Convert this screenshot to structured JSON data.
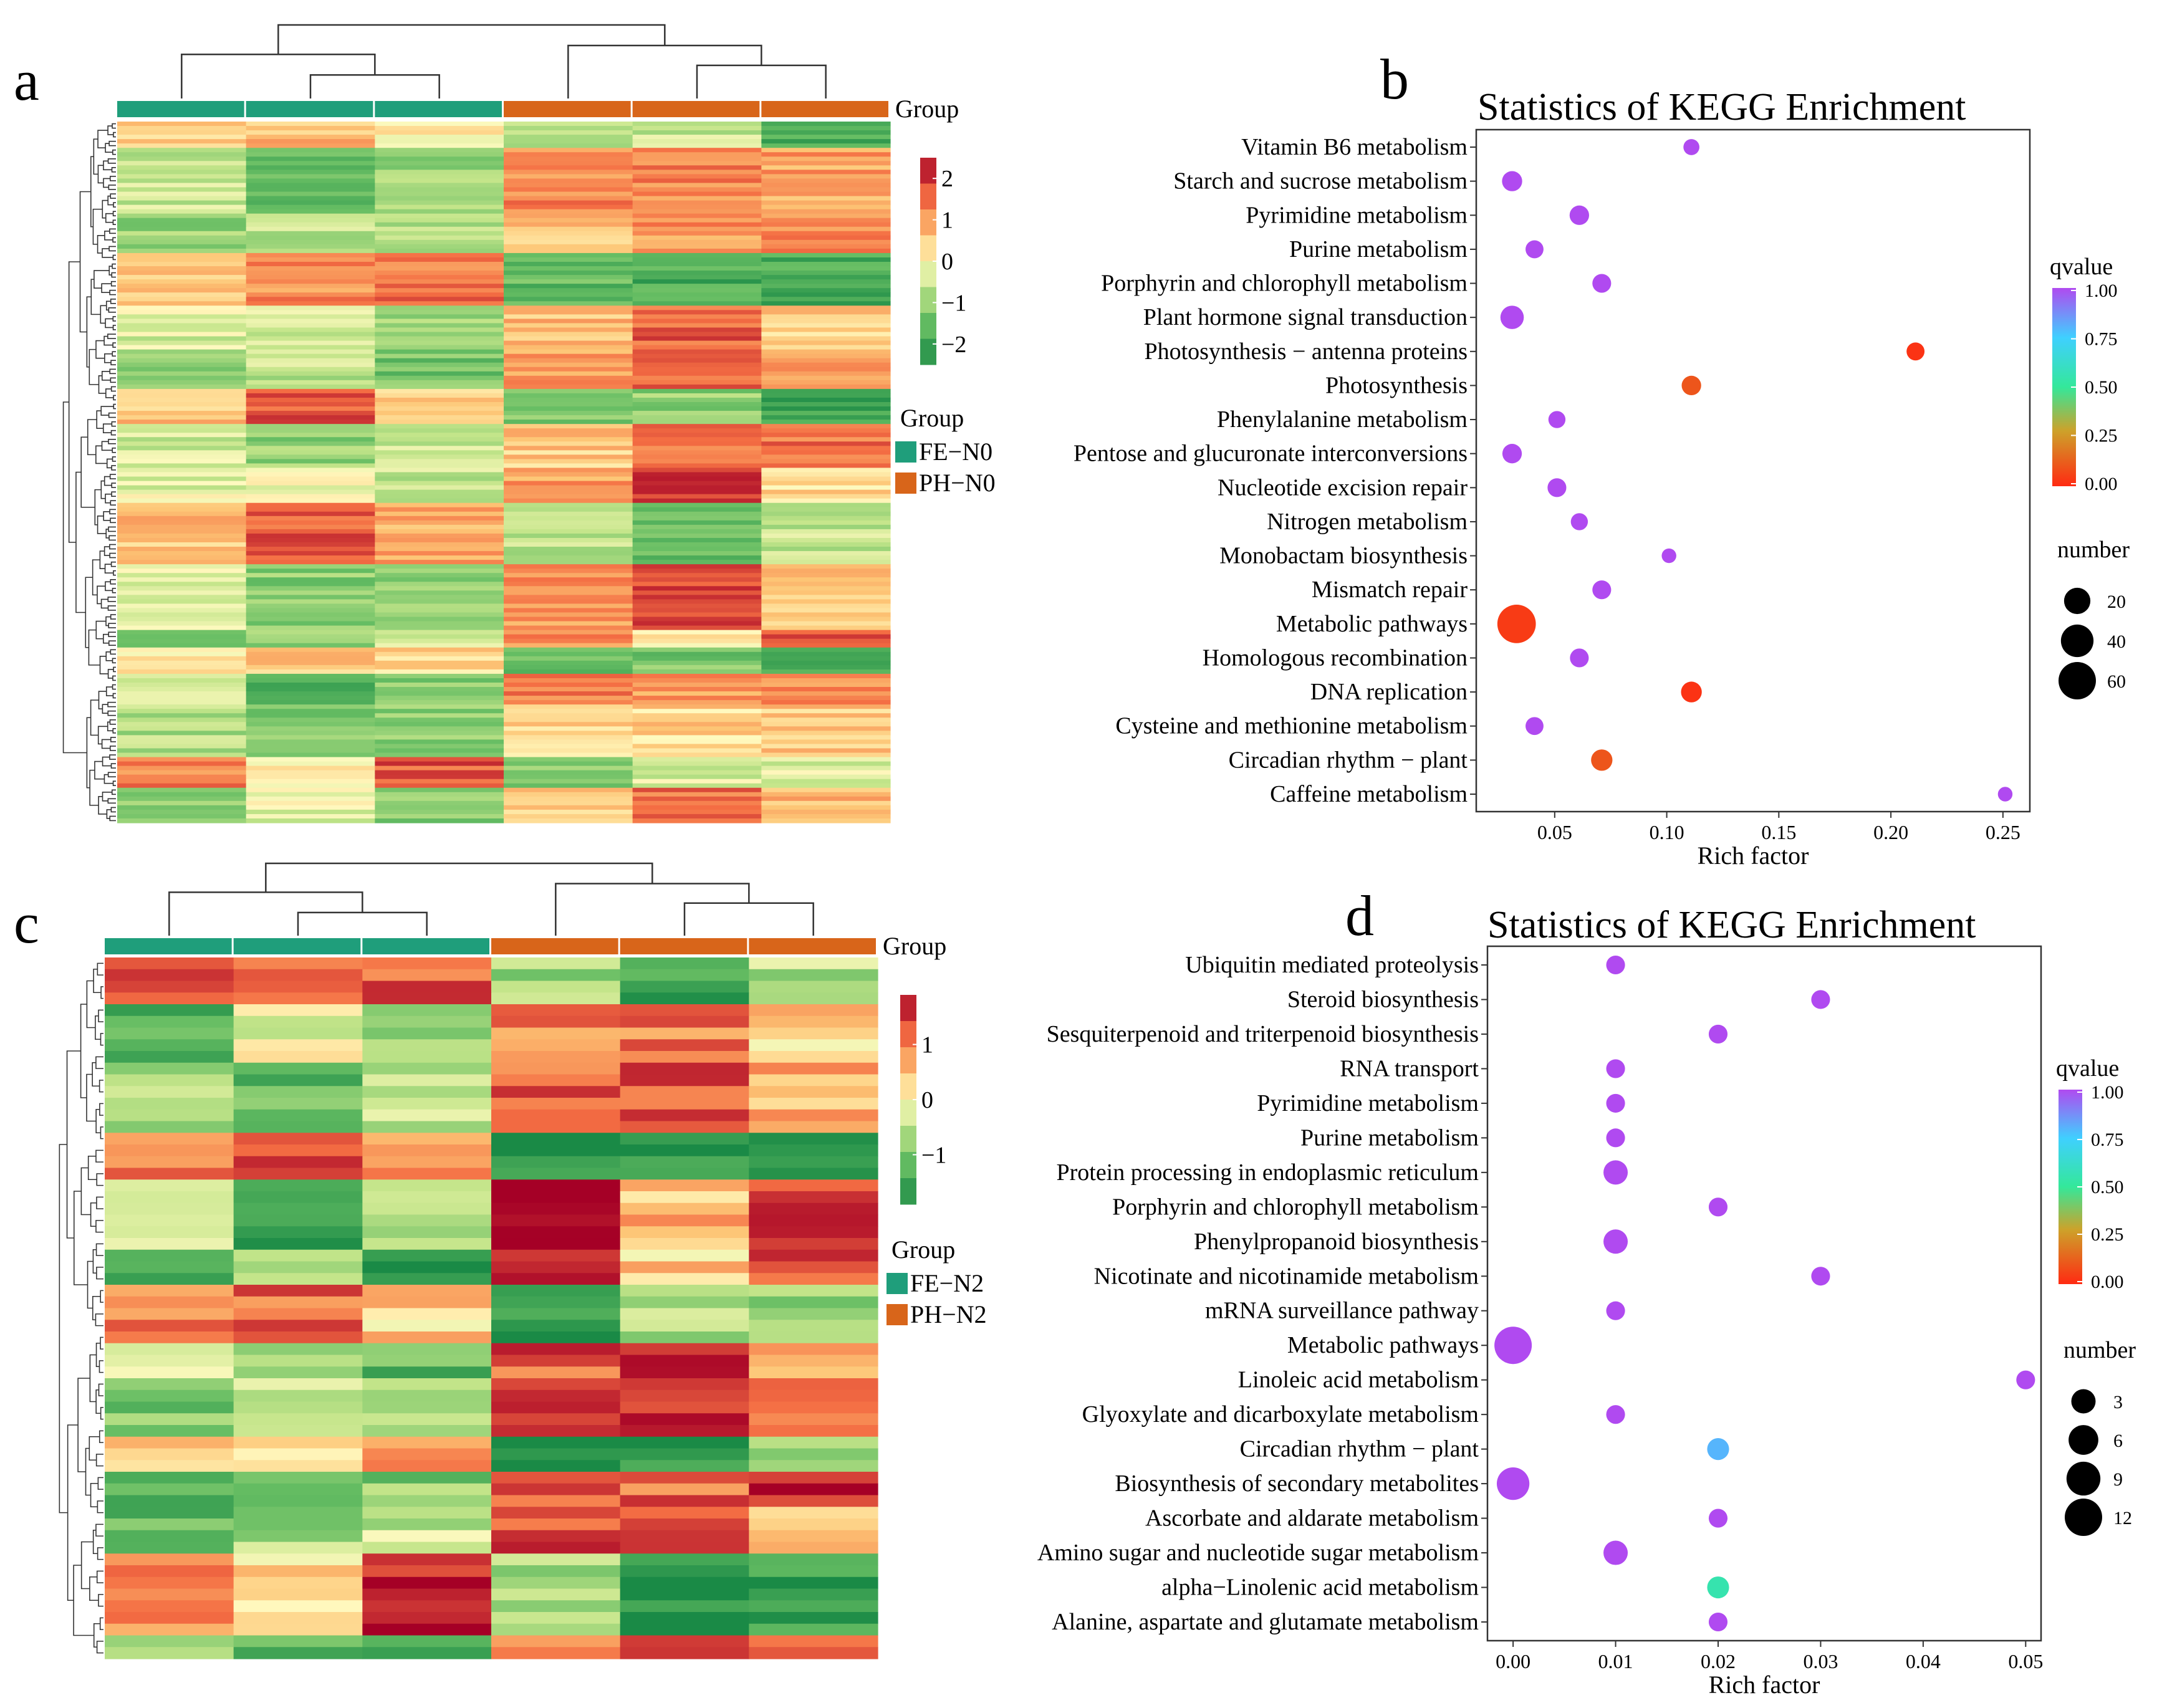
{
  "colors": {
    "fe_group": "#1f9e7b",
    "ph_group": "#d8651a",
    "heat_low": "#1a8a46",
    "heat_mid": "#fffac0",
    "heat_high": "#a50026",
    "q_low": "#ff2a12",
    "q_mid1": "#cda22a",
    "q_mid2": "#34e89a",
    "q_mid3": "#3fd0ff",
    "q_high": "#b04af0",
    "dendro": "#333333"
  },
  "chart_data": [
    {
      "panel": "a",
      "type": "heatmap",
      "columns": 6,
      "rows": 160,
      "group_label": "Group",
      "groups": [
        {
          "name": "FE−N0",
          "columns": 3
        },
        {
          "name": "PH−N0",
          "columns": 3
        }
      ],
      "scale": {
        "min": -2.5,
        "max": 2.5,
        "ticks": [
          "2",
          "1",
          "0",
          "−1",
          "−2"
        ],
        "tick_values": [
          2,
          1,
          0,
          -1,
          -2
        ]
      },
      "legend_title": "Group",
      "seed": 11
    },
    {
      "panel": "b",
      "type": "scatter",
      "title": "Statistics of KEGG Enrichment",
      "xlabel": "Rich factor",
      "xlim": [
        0.015,
        0.262
      ],
      "xticks": [
        "0.05",
        "0.10",
        "0.15",
        "0.20",
        "0.25"
      ],
      "xtick_values": [
        0.05,
        0.1,
        0.15,
        0.2,
        0.25
      ],
      "color_title": "qvalue",
      "color_ticks": [
        "1.00",
        "0.75",
        "0.50",
        "0.25",
        "0.00"
      ],
      "size_title": "number",
      "size_ticks": [
        "20",
        "40",
        "60"
      ],
      "size_tick_values": [
        20,
        40,
        60
      ],
      "size_max": 60,
      "categories": [
        "Vitamin B6 metabolism",
        "Starch and sucrose metabolism",
        "Pyrimidine metabolism",
        "Purine metabolism",
        "Porphyrin and chlorophyll metabolism",
        "Plant hormone signal transduction",
        "Photosynthesis − antenna proteins",
        "Photosynthesis",
        "Phenylalanine metabolism",
        "Pentose and glucuronate interconversions",
        "Nucleotide excision repair",
        "Nitrogen metabolism",
        "Monobactam biosynthesis",
        "Mismatch repair",
        "Metabolic pathways",
        "Homologous recombination",
        "DNA replication",
        "Cysteine and methionine metabolism",
        "Circadian rhythm − plant",
        "Caffeine metabolism"
      ],
      "points": [
        {
          "rich": 0.111,
          "q": 1.0,
          "n": 2
        },
        {
          "rich": 0.031,
          "q": 1.0,
          "n": 7
        },
        {
          "rich": 0.061,
          "q": 1.0,
          "n": 6
        },
        {
          "rich": 0.041,
          "q": 1.0,
          "n": 4
        },
        {
          "rich": 0.071,
          "q": 1.0,
          "n": 5
        },
        {
          "rich": 0.031,
          "q": 1.0,
          "n": 13
        },
        {
          "rich": 0.211,
          "q": 0.02,
          "n": 4
        },
        {
          "rich": 0.111,
          "q": 0.1,
          "n": 6
        },
        {
          "rich": 0.051,
          "q": 1.0,
          "n": 3
        },
        {
          "rich": 0.031,
          "q": 1.0,
          "n": 6
        },
        {
          "rich": 0.051,
          "q": 1.0,
          "n": 5
        },
        {
          "rich": 0.061,
          "q": 1.0,
          "n": 3
        },
        {
          "rich": 0.101,
          "q": 1.0,
          "n": 1
        },
        {
          "rich": 0.071,
          "q": 1.0,
          "n": 5
        },
        {
          "rich": 0.033,
          "q": 0.04,
          "n": 65
        },
        {
          "rich": 0.061,
          "q": 1.0,
          "n": 5
        },
        {
          "rich": 0.111,
          "q": 0.02,
          "n": 8
        },
        {
          "rich": 0.041,
          "q": 1.0,
          "n": 4
        },
        {
          "rich": 0.071,
          "q": 0.1,
          "n": 9
        },
        {
          "rich": 0.251,
          "q": 1.0,
          "n": 1
        }
      ]
    },
    {
      "panel": "c",
      "type": "heatmap",
      "columns": 6,
      "rows": 60,
      "group_label": "Group",
      "groups": [
        {
          "name": "FE−N2",
          "columns": 3
        },
        {
          "name": "PH−N2",
          "columns": 3
        }
      ],
      "scale": {
        "min": -1.9,
        "max": 1.9,
        "ticks": [
          "1",
          "0",
          "−1"
        ],
        "tick_values": [
          1,
          0,
          -1
        ]
      },
      "legend_title": "Group",
      "seed": 29
    },
    {
      "panel": "d",
      "type": "scatter",
      "title": "Statistics of KEGG Enrichment",
      "xlabel": "Rich factor",
      "xlim": [
        -0.0025,
        0.0515
      ],
      "xticks": [
        "0.00",
        "0.01",
        "0.02",
        "0.03",
        "0.04",
        "0.05"
      ],
      "xtick_values": [
        0.0,
        0.01,
        0.02,
        0.03,
        0.04,
        0.05
      ],
      "color_title": "qvalue",
      "color_ticks": [
        "1.00",
        "0.75",
        "0.50",
        "0.25",
        "0.00"
      ],
      "size_title": "number",
      "size_ticks": [
        "3",
        "6",
        "9",
        "12"
      ],
      "size_tick_values": [
        3,
        6,
        9,
        12
      ],
      "size_max": 12,
      "categories": [
        "Ubiquitin mediated proteolysis",
        "Steroid biosynthesis",
        "Sesquiterpenoid and triterpenoid biosynthesis",
        "RNA transport",
        "Pyrimidine metabolism",
        "Purine metabolism",
        "Protein processing in endoplasmic reticulum",
        "Porphyrin and chlorophyll metabolism",
        "Phenylpropanoid biosynthesis",
        "Nicotinate and nicotinamide metabolism",
        "mRNA surveillance pathway",
        "Metabolic pathways",
        "Linoleic acid metabolism",
        "Glyoxylate and dicarboxylate metabolism",
        "Circadian rhythm − plant",
        "Biosynthesis of secondary metabolites",
        "Ascorbate and aldarate metabolism",
        "Amino sugar and nucleotide sugar metabolism",
        "alpha−Linolenic acid metabolism",
        "Alanine, aspartate and glutamate metabolism"
      ],
      "points": [
        {
          "rich": 0.01,
          "q": 1.0,
          "n": 1
        },
        {
          "rich": 0.03,
          "q": 1.0,
          "n": 1
        },
        {
          "rich": 0.02,
          "q": 1.0,
          "n": 1
        },
        {
          "rich": 0.01,
          "q": 1.0,
          "n": 1
        },
        {
          "rich": 0.01,
          "q": 1.0,
          "n": 1
        },
        {
          "rich": 0.01,
          "q": 1.0,
          "n": 1
        },
        {
          "rich": 0.01,
          "q": 1.0,
          "n": 3
        },
        {
          "rich": 0.02,
          "q": 1.0,
          "n": 1
        },
        {
          "rich": 0.01,
          "q": 1.0,
          "n": 3
        },
        {
          "rich": 0.03,
          "q": 1.0,
          "n": 1
        },
        {
          "rich": 0.01,
          "q": 1.0,
          "n": 1
        },
        {
          "rich": 0.0,
          "q": 1.0,
          "n": 12
        },
        {
          "rich": 0.05,
          "q": 1.0,
          "n": 1
        },
        {
          "rich": 0.01,
          "q": 1.0,
          "n": 1
        },
        {
          "rich": 0.02,
          "q": 0.8,
          "n": 2
        },
        {
          "rich": 0.0,
          "q": 1.0,
          "n": 8
        },
        {
          "rich": 0.02,
          "q": 1.0,
          "n": 1
        },
        {
          "rich": 0.01,
          "q": 1.0,
          "n": 3
        },
        {
          "rich": 0.02,
          "q": 0.55,
          "n": 2
        },
        {
          "rich": 0.02,
          "q": 1.0,
          "n": 1
        }
      ]
    }
  ]
}
